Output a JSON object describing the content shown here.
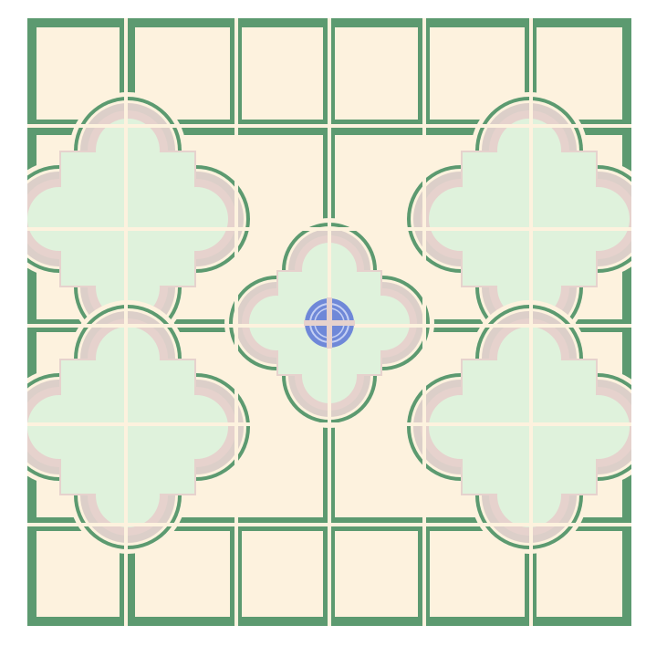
{
  "pattern": {
    "kind": "ceramic-floor-tile-grid",
    "palette": {
      "background": "#ffffff",
      "cream": "#fdf2de",
      "green_outline": "#5c9a70",
      "green_dark": "#4e8a63",
      "mint_fill": "#dff2dc",
      "pink_band": "#e3cfc9",
      "pink_outer": "#dccfc9",
      "blue_center": "#6f88d8",
      "blue_ring": "#aab9ee"
    },
    "icons": {
      "corner_motif": "quatrefoil-quarter-icon",
      "center_motif": "quatrefoil-icon",
      "center_boss": "blue-roundel-icon"
    }
  }
}
